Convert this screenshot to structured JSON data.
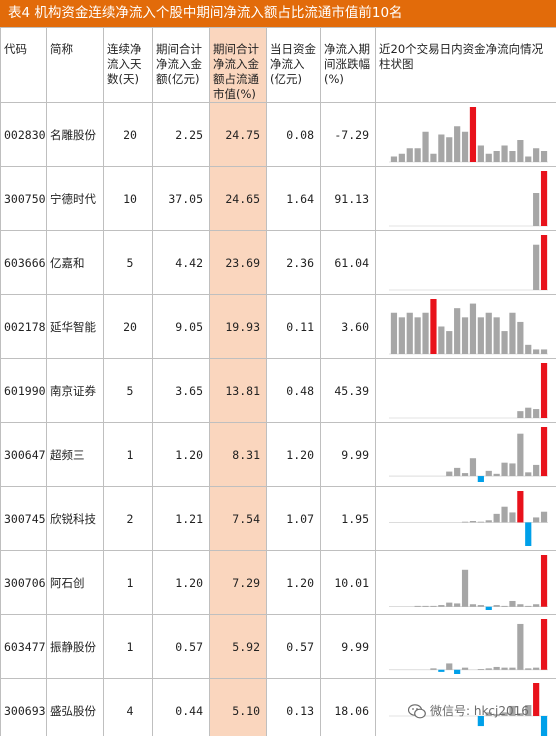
{
  "title": "表4  机构资金连续净流入个股中期间净流入额占比流通市值前10名",
  "headers": {
    "code": "代码",
    "name": "简称",
    "days": "连续净流入天数(天)",
    "amount": "期间合计净流入金额(亿元)",
    "ratio": "期间合计净流入金额占流通市值(%)",
    "today": "当日资金净流入(亿元)",
    "change": "净流入期间涨跌幅(%)",
    "chart": "近20个交易日内资金净流向情况柱状图"
  },
  "rows": [
    {
      "code": "002830",
      "name": "名雕股份",
      "days": "20",
      "amount": "2.25",
      "ratio": "24.75",
      "today": "0.08",
      "change": "-7.29"
    },
    {
      "code": "300750",
      "name": "宁德时代",
      "days": "10",
      "amount": "37.05",
      "ratio": "24.65",
      "today": "1.64",
      "change": "91.13"
    },
    {
      "code": "603666",
      "name": "亿嘉和",
      "days": "5",
      "amount": "4.42",
      "ratio": "23.69",
      "today": "2.36",
      "change": "61.04"
    },
    {
      "code": "002178",
      "name": "延华智能",
      "days": "20",
      "amount": "9.05",
      "ratio": "19.93",
      "today": "0.11",
      "change": "3.60"
    },
    {
      "code": "601990",
      "name": "南京证券",
      "days": "5",
      "amount": "3.65",
      "ratio": "13.81",
      "today": "0.48",
      "change": "45.39"
    },
    {
      "code": "300647",
      "name": "超频三",
      "days": "1",
      "amount": "1.20",
      "ratio": "8.31",
      "today": "1.20",
      "change": "9.99"
    },
    {
      "code": "300745",
      "name": "欣锐科技",
      "days": "2",
      "amount": "1.21",
      "ratio": "7.54",
      "today": "1.07",
      "change": "1.95"
    },
    {
      "code": "300706",
      "name": "阿石创",
      "days": "1",
      "amount": "1.20",
      "ratio": "7.29",
      "today": "1.20",
      "change": "10.01"
    },
    {
      "code": "603477",
      "name": "振静股份",
      "days": "1",
      "amount": "0.57",
      "ratio": "5.92",
      "today": "0.57",
      "change": "9.99"
    },
    {
      "code": "300693",
      "name": "盛弘股份",
      "days": "4",
      "amount": "0.44",
      "ratio": "5.10",
      "today": "0.13",
      "change": "18.06"
    }
  ],
  "chart_data": [
    {
      "type": "bar",
      "stock": "002830",
      "values": [
        2,
        3,
        5,
        5,
        11,
        3,
        10,
        9,
        13,
        11,
        20,
        6,
        3,
        4,
        6,
        4,
        8,
        2,
        5,
        4
      ],
      "highlight_index": 10
    },
    {
      "type": "bar",
      "stock": "300750",
      "values": [
        0,
        0,
        0,
        0,
        0,
        0,
        0,
        0,
        0,
        0,
        0,
        0,
        0,
        0,
        0,
        0,
        0,
        0,
        0.6,
        1
      ],
      "highlight_index": 19
    },
    {
      "type": "bar",
      "stock": "603666",
      "values": [
        0,
        0,
        0,
        0,
        0,
        0,
        0,
        0,
        0,
        0,
        0,
        0,
        0,
        0,
        0,
        0,
        0,
        0,
        14,
        17
      ],
      "highlight_index": 19
    },
    {
      "type": "bar",
      "stock": "002178",
      "values": [
        9,
        8,
        9,
        8,
        9,
        12,
        6,
        5,
        10,
        8,
        11,
        8,
        9,
        8,
        5,
        9,
        7,
        2,
        1,
        1
      ],
      "highlight_index": 5
    },
    {
      "type": "bar",
      "stock": "601990",
      "values": [
        0,
        0,
        0,
        0,
        0,
        0,
        0,
        0,
        0,
        0,
        0,
        0,
        0,
        0,
        0,
        0,
        1,
        1.5,
        1.3,
        8
      ],
      "highlight_index": 19
    },
    {
      "type": "bar",
      "stock": "300647",
      "values": [
        0,
        0,
        0,
        0,
        0,
        0,
        0,
        0.6,
        1.1,
        0.4,
        2.4,
        -0.8,
        0.7,
        0.3,
        1.8,
        1.7,
        5.7,
        0.5,
        1.5,
        6.6
      ],
      "highlight_index": 19
    },
    {
      "type": "bar",
      "stock": "300745",
      "values": [
        0,
        0,
        0,
        0,
        0,
        0,
        0,
        0,
        0,
        0.1,
        0.2,
        0.1,
        0.3,
        1.2,
        2.2,
        1.4,
        4.4,
        -3.3,
        0.7,
        1.5
      ],
      "highlight_index": 16
    },
    {
      "type": "bar",
      "stock": "300706",
      "values": [
        0,
        0,
        0,
        0.1,
        0.1,
        0.1,
        0.2,
        0.5,
        0.4,
        4.5,
        0.3,
        0.2,
        -0.4,
        0.2,
        0.1,
        0.7,
        0.3,
        0.1,
        0.3,
        6.3
      ],
      "highlight_index": 19
    },
    {
      "type": "bar",
      "stock": "603477",
      "values": [
        0,
        0,
        0,
        0,
        0,
        0.2,
        -0.3,
        0.9,
        -0.6,
        0.3,
        0,
        0.1,
        0.2,
        0.4,
        0.3,
        0.3,
        6.5,
        0.2,
        0.3,
        7.2
      ],
      "highlight_index": 19
    },
    {
      "type": "bar",
      "stock": "300693",
      "values": [
        0,
        0,
        0,
        0,
        0,
        0,
        0,
        0,
        0,
        0,
        0,
        -1.1,
        0.4,
        0.2,
        0.4,
        1.1,
        0.3,
        1.2,
        3.6,
        -2.4
      ],
      "highlight_index": 18
    }
  ],
  "colors": {
    "title_bg": "#e26b0a",
    "highlight_col": "#fad6be",
    "bar_default": "#a6a6a6",
    "bar_highlight": "#e8121b",
    "bar_negative": "#00a0e9"
  },
  "watermark": {
    "icon": "wechat-icon",
    "text": "微信号: hkcj2016"
  }
}
